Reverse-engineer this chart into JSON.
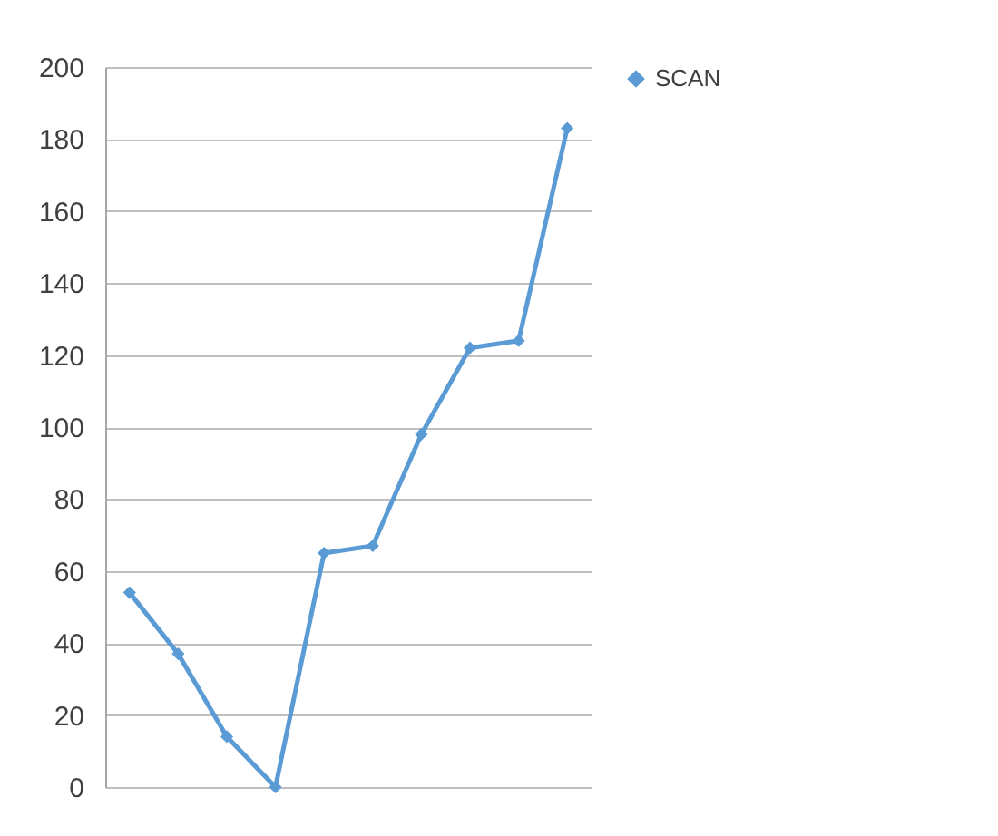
{
  "chart_data": {
    "type": "line",
    "categories": [
      null,
      null,
      null,
      null,
      null,
      null,
      null,
      null,
      null,
      null
    ],
    "series": [
      {
        "name": "SCAN",
        "color": "#5b9bd5",
        "values": [
          54,
          37,
          14,
          0,
          65,
          67,
          98,
          122,
          124,
          183
        ]
      }
    ],
    "ylim": [
      0,
      200
    ],
    "yticks": [
      0,
      20,
      40,
      60,
      80,
      100,
      120,
      140,
      160,
      180,
      200
    ],
    "grid": "y",
    "legend": "right",
    "marker": "diamond",
    "line_style": "solid",
    "tick_labels": "y"
  }
}
